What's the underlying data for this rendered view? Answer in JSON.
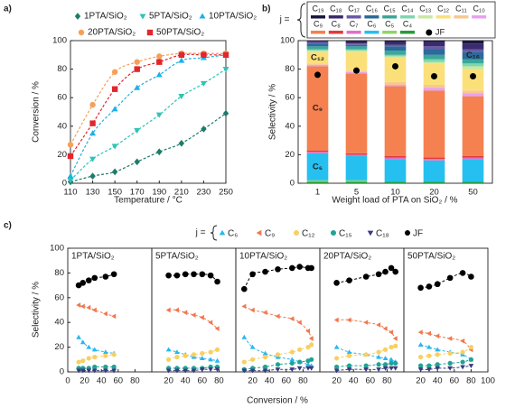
{
  "chart_data": [
    {
      "type": "line",
      "label": "a)",
      "xlabel": "Temperature / °C",
      "ylabel": "Conversion / %",
      "x": [
        110,
        130,
        150,
        170,
        190,
        210,
        230,
        250
      ],
      "xlim": [
        110,
        250
      ],
      "xticks": [
        110,
        130,
        150,
        170,
        190,
        210,
        230,
        250
      ],
      "ylim": [
        0,
        100
      ],
      "yticks": [
        0,
        20,
        40,
        60,
        80,
        100
      ],
      "series": [
        {
          "name": "1PTA/SiO₂",
          "color": "#1e7b6b",
          "marker": "diamond",
          "values": [
            1,
            5,
            8,
            15,
            22,
            28,
            38,
            49
          ]
        },
        {
          "name": "5PTA/SiO₂",
          "color": "#2ec4b6",
          "marker": "triangle-down",
          "values": [
            2,
            17,
            26,
            37,
            48,
            61,
            70,
            80
          ]
        },
        {
          "name": "10PTA/SiO₂",
          "color": "#1fb1e8",
          "marker": "triangle-up",
          "values": [
            5,
            35,
            52,
            67,
            76,
            86,
            88,
            90
          ]
        },
        {
          "name": "20PTA/SiO₂",
          "color": "#f5a05a",
          "marker": "circle",
          "values": [
            27,
            55,
            78,
            85,
            89,
            91,
            91,
            91
          ]
        },
        {
          "name": "50PTA/SiO₂",
          "color": "#e3262b",
          "marker": "square",
          "values": [
            19,
            42,
            66,
            80,
            85,
            90,
            90,
            90
          ]
        }
      ]
    },
    {
      "type": "stacked_bar",
      "label": "b)",
      "legend_title": "j =",
      "xlabel": "Weight load of PTA on SiO₂ / %",
      "ylabel": "Selectivity / %",
      "categories": [
        "1",
        "5",
        "10",
        "20",
        "50"
      ],
      "ylim": [
        0,
        100
      ],
      "yticks": [
        0,
        20,
        40,
        60,
        80,
        100
      ],
      "series": [
        {
          "name": "C₄",
          "color": "#2a9a3a",
          "values": [
            1,
            1,
            1,
            1,
            1
          ]
        },
        {
          "name": "C₅",
          "color": "#8fd46a",
          "values": [
            1,
            1,
            0,
            0,
            0
          ]
        },
        {
          "name": "C₆",
          "color": "#25c0f0",
          "values": [
            19,
            17,
            16,
            15,
            16
          ]
        },
        {
          "name": "C₇",
          "color": "#e070c8",
          "values": [
            1,
            1,
            1,
            1,
            1
          ]
        },
        {
          "name": "C₈",
          "color": "#e33a3a",
          "values": [
            1,
            1,
            1,
            1,
            1
          ]
        },
        {
          "name": "C₉",
          "color": "#f58050",
          "values": [
            59,
            56,
            49,
            47,
            42
          ]
        },
        {
          "name": "C₁₀",
          "color": "#e8a0f0",
          "values": [
            1,
            1,
            1,
            2,
            2
          ]
        },
        {
          "name": "C₁₁",
          "color": "#f8c890",
          "values": [
            1,
            1,
            2,
            2,
            2
          ]
        },
        {
          "name": "C₁₂",
          "color": "#fbe07a",
          "values": [
            8,
            13,
            17,
            15,
            15
          ]
        },
        {
          "name": "C₁₃",
          "color": "#c8e8a0",
          "values": [
            1,
            1,
            1,
            1,
            2
          ]
        },
        {
          "name": "C₁₄",
          "color": "#7fd6b0",
          "values": [
            1,
            1,
            1,
            2,
            2
          ]
        },
        {
          "name": "C₁₅",
          "color": "#3aa79a",
          "values": [
            2,
            2,
            3,
            3,
            3
          ]
        },
        {
          "name": "C₁₆",
          "color": "#2a6b9a",
          "values": [
            2,
            1,
            3,
            4,
            5
          ]
        },
        {
          "name": "C₁₇",
          "color": "#6a5aa8",
          "values": [
            1,
            1,
            1,
            2,
            2
          ]
        },
        {
          "name": "C₁₈",
          "color": "#3a2a6e",
          "values": [
            1,
            1,
            2,
            3,
            4
          ]
        },
        {
          "name": "C₁₉",
          "color": "#1a1640",
          "values": [
            0,
            1,
            1,
            1,
            2
          ]
        }
      ],
      "points": {
        "name": "JF",
        "color": "#000000",
        "values": [
          76,
          79,
          82,
          75,
          75
        ]
      },
      "annotations": [
        {
          "text": "C₁₂",
          "category": "1"
        },
        {
          "text": "C₉",
          "category": "1"
        },
        {
          "text": "C₆",
          "category": "1"
        },
        {
          "text": "C₁₆",
          "category": "50"
        }
      ]
    },
    {
      "type": "line",
      "label": "c)",
      "legend_title": "j =",
      "xlabel": "Conversion / %",
      "ylabel": "Selectivity / %",
      "xlim": [
        0,
        100
      ],
      "ylim": [
        0,
        100
      ],
      "yticks": [
        0,
        20,
        40,
        60,
        80,
        100
      ],
      "series": [
        {
          "name": "C₆",
          "color": "#29b6f0",
          "marker": "triangle-up"
        },
        {
          "name": "C₉",
          "color": "#f07850",
          "marker": "triangle-left"
        },
        {
          "name": "C₁₂",
          "color": "#f8d060",
          "marker": "circle"
        },
        {
          "name": "C₁₅",
          "color": "#1fa394",
          "marker": "circle"
        },
        {
          "name": "C₁₈",
          "color": "#3a3a80",
          "marker": "triangle-down"
        },
        {
          "name": "JF",
          "color": "#000000",
          "marker": "circle"
        }
      ],
      "panels": [
        {
          "title": "1PTA/SiO₂",
          "xticks": [
            0,
            20,
            40,
            60,
            80
          ],
          "x": [
            13,
            18,
            25,
            32,
            45,
            55
          ],
          "values": [
            [
              28,
              24,
              20,
              18,
              16,
              15
            ],
            [
              54,
              53,
              52,
              50,
              47,
              45
            ],
            [
              8,
              9,
              11,
              12,
              13,
              14
            ],
            [
              3,
              3,
              3,
              4,
              4,
              4
            ],
            [
              1,
              1,
              1,
              1,
              1,
              1
            ],
            [
              70,
              72,
              74,
              76,
              77,
              79
            ]
          ]
        },
        {
          "title": "5PTA/SiO₂",
          "xticks": [
            20,
            40,
            60,
            80
          ],
          "x": [
            20,
            30,
            40,
            50,
            60,
            70,
            78
          ],
          "values": [
            [
              18,
              16,
              14,
              12,
              11,
              10,
              9
            ],
            [
              50,
              50,
              48,
              46,
              44,
              40,
              35
            ],
            [
              10,
              12,
              13,
              14,
              15,
              16,
              18
            ],
            [
              3,
              3,
              3,
              3,
              3,
              4,
              4
            ],
            [
              1,
              1,
              1,
              1,
              2,
              2,
              2
            ],
            [
              78,
              78,
              79,
              79,
              79,
              78,
              73
            ]
          ]
        },
        {
          "title": "10PTA/SiO₂",
          "xticks": [
            20,
            40,
            60,
            80
          ],
          "x": [
            10,
            20,
            35,
            50,
            67,
            76,
            86,
            90
          ],
          "values": [
            [
              28,
              20,
              15,
              12,
              10,
              8,
              6,
              5
            ],
            [
              53,
              50,
              48,
              45,
              43,
              40,
              33,
              27
            ],
            [
              8,
              10,
              12,
              14,
              16,
              18,
              20,
              22
            ],
            [
              2,
              3,
              4,
              6,
              7,
              8,
              9,
              10
            ],
            [
              1,
              1,
              1,
              2,
              2,
              3,
              3,
              3
            ],
            [
              67,
              79,
              81,
              83,
              84,
              85,
              84,
              84
            ]
          ]
        },
        {
          "title": "20PTA/SiO₂",
          "xticks": [
            20,
            40,
            60,
            80
          ],
          "x": [
            20,
            35,
            55,
            70,
            78,
            85,
            90
          ],
          "values": [
            [
              20,
              16,
              14,
              12,
              11,
              10,
              8
            ],
            [
              42,
              42,
              40,
              38,
              35,
              32,
              27
            ],
            [
              11,
              13,
              14,
              16,
              18,
              20,
              21
            ],
            [
              4,
              5,
              5,
              6,
              6,
              7,
              7
            ],
            [
              1,
              2,
              2,
              2,
              3,
              3,
              3
            ],
            [
              72,
              74,
              77,
              79,
              81,
              84,
              81
            ]
          ]
        },
        {
          "title": "50PTA/SiO₂",
          "xticks": [
            20,
            40,
            60,
            80,
            100
          ],
          "x": [
            20,
            30,
            40,
            55,
            70,
            80
          ],
          "values": [
            [
              22,
              20,
              18,
              16,
              14,
              10
            ],
            [
              32,
              31,
              29,
              27,
              25,
              18
            ],
            [
              12,
              13,
              14,
              15,
              16,
              20
            ],
            [
              5,
              5,
              6,
              7,
              8,
              10
            ],
            [
              2,
              2,
              3,
              3,
              4,
              5
            ],
            [
              68,
              69,
              71,
              76,
              80,
              77
            ]
          ]
        }
      ]
    }
  ]
}
